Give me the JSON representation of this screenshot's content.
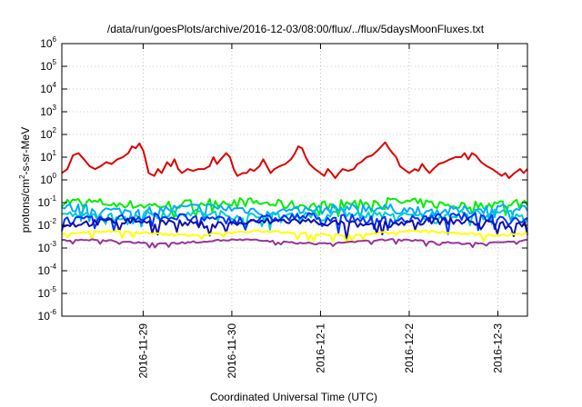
{
  "chart_data": {
    "type": "line",
    "title": "/data/run/goesPlots/archive/2016-12-03/08:00/flux/../flux/5daysMoonFluxes.txt",
    "xlabel": "Coordinated Universal Time (UTC)",
    "ylabel_parts": {
      "base": "protons/cm",
      "sup": "2",
      "rest": "-s-sr-MeV"
    },
    "yscale": "log",
    "ylim": [
      1e-06,
      1000000.0
    ],
    "ytick_exponents": [
      -6,
      -5,
      -4,
      -3,
      -2,
      -1,
      0,
      1,
      2,
      3,
      4,
      5,
      6
    ],
    "ytick_base": "10",
    "xlim": [
      "2016-11-28T02:00",
      "2016-12-03T08:00"
    ],
    "xticks": [
      {
        "at": "2016-11-29T00:00",
        "label": "2016-11-29"
      },
      {
        "at": "2016-11-30T00:00",
        "label": "2016-11-30"
      },
      {
        "at": "2016-12-01T00:00",
        "label": "2016-12-1"
      },
      {
        "at": "2016-12-02T00:00",
        "label": "2016-12-2"
      },
      {
        "at": "2016-12-03T00:00",
        "label": "2016-12-3"
      }
    ],
    "grid": true,
    "series": [
      {
        "color": "#dd0000",
        "points": [
          [
            "2016-11-28T02:00",
            2.0
          ],
          [
            "2016-11-28T03:30",
            3.0
          ],
          [
            "2016-11-28T05:00",
            12
          ],
          [
            "2016-11-28T06:30",
            15
          ],
          [
            "2016-11-28T08:00",
            8
          ],
          [
            "2016-11-28T09:30",
            4
          ],
          [
            "2016-11-28T11:00",
            3
          ],
          [
            "2016-11-28T12:30",
            4
          ],
          [
            "2016-11-28T14:00",
            6
          ],
          [
            "2016-11-28T15:30",
            5
          ],
          [
            "2016-11-28T17:00",
            8
          ],
          [
            "2016-11-28T18:30",
            10
          ],
          [
            "2016-11-28T20:00",
            15
          ],
          [
            "2016-11-28T21:00",
            30
          ],
          [
            "2016-11-28T22:00",
            25
          ],
          [
            "2016-11-28T23:00",
            40
          ],
          [
            "2016-11-29T00:00",
            20
          ],
          [
            "2016-11-29T00:30",
            10
          ],
          [
            "2016-11-29T01:30",
            2
          ],
          [
            "2016-11-29T03:00",
            1.5
          ],
          [
            "2016-11-29T04:00",
            3
          ],
          [
            "2016-11-29T05:00",
            2
          ],
          [
            "2016-11-29T06:30",
            6
          ],
          [
            "2016-11-29T07:30",
            4
          ],
          [
            "2016-11-29T08:30",
            8
          ],
          [
            "2016-11-29T09:30",
            3
          ],
          [
            "2016-11-29T10:30",
            2
          ],
          [
            "2016-11-29T12:00",
            3
          ],
          [
            "2016-11-29T13:30",
            2.5
          ],
          [
            "2016-11-29T15:00",
            3
          ],
          [
            "2016-11-29T16:30",
            3
          ],
          [
            "2016-11-29T18:00",
            4
          ],
          [
            "2016-11-29T19:00",
            10
          ],
          [
            "2016-11-29T20:00",
            5
          ],
          [
            "2016-11-29T21:00",
            8
          ],
          [
            "2016-11-29T22:30",
            15
          ],
          [
            "2016-11-29T23:30",
            10
          ],
          [
            "2016-11-30T00:30",
            3
          ],
          [
            "2016-11-30T01:30",
            1.5
          ],
          [
            "2016-11-30T03:00",
            2
          ],
          [
            "2016-11-30T04:00",
            2
          ],
          [
            "2016-11-30T05:00",
            3
          ],
          [
            "2016-11-30T06:00",
            2.5
          ],
          [
            "2016-11-30T07:30",
            4
          ],
          [
            "2016-11-30T08:30",
            8
          ],
          [
            "2016-11-30T09:30",
            4
          ],
          [
            "2016-11-30T10:30",
            2
          ],
          [
            "2016-11-30T11:30",
            3
          ],
          [
            "2016-11-30T13:00",
            4
          ],
          [
            "2016-11-30T14:30",
            5
          ],
          [
            "2016-11-30T16:00",
            8
          ],
          [
            "2016-11-30T17:00",
            14
          ],
          [
            "2016-11-30T18:00",
            30
          ],
          [
            "2016-11-30T19:00",
            25
          ],
          [
            "2016-11-30T20:00",
            10
          ],
          [
            "2016-11-30T21:00",
            5
          ],
          [
            "2016-11-30T22:30",
            3
          ],
          [
            "2016-12-01T00:00",
            2
          ],
          [
            "2016-12-01T01:00",
            1.5
          ],
          [
            "2016-12-01T02:00",
            3
          ],
          [
            "2016-12-01T03:00",
            2
          ],
          [
            "2016-12-01T04:00",
            1.2
          ],
          [
            "2016-12-01T05:00",
            2
          ],
          [
            "2016-12-01T06:00",
            3
          ],
          [
            "2016-12-01T07:30",
            2.5
          ],
          [
            "2016-12-01T09:00",
            3
          ],
          [
            "2016-12-01T10:00",
            5
          ],
          [
            "2016-12-01T11:00",
            6
          ],
          [
            "2016-12-01T12:30",
            10
          ],
          [
            "2016-12-01T14:00",
            12
          ],
          [
            "2016-12-01T15:30",
            20
          ],
          [
            "2016-12-01T16:30",
            30
          ],
          [
            "2016-12-01T17:30",
            45
          ],
          [
            "2016-12-01T18:30",
            25
          ],
          [
            "2016-12-01T19:30",
            15
          ],
          [
            "2016-12-01T20:30",
            10
          ],
          [
            "2016-12-01T21:30",
            4
          ],
          [
            "2016-12-01T22:30",
            3
          ],
          [
            "2016-12-02T00:00",
            2
          ],
          [
            "2016-12-02T01:30",
            3
          ],
          [
            "2016-12-02T02:30",
            2.5
          ],
          [
            "2016-12-02T03:30",
            5
          ],
          [
            "2016-12-02T04:30",
            3
          ],
          [
            "2016-12-02T05:30",
            2
          ],
          [
            "2016-12-02T06:30",
            3
          ],
          [
            "2016-12-02T08:00",
            5
          ],
          [
            "2016-12-02T09:30",
            6
          ],
          [
            "2016-12-02T11:00",
            8
          ],
          [
            "2016-12-02T12:30",
            10
          ],
          [
            "2016-12-02T14:00",
            10
          ],
          [
            "2016-12-02T15:00",
            15
          ],
          [
            "2016-12-02T16:00",
            8
          ],
          [
            "2016-12-02T17:00",
            15
          ],
          [
            "2016-12-02T18:00",
            12
          ],
          [
            "2016-12-02T19:30",
            6
          ],
          [
            "2016-12-02T21:00",
            4
          ],
          [
            "2016-12-02T22:30",
            3
          ],
          [
            "2016-12-03T00:00",
            2
          ],
          [
            "2016-12-03T01:00",
            1.5
          ],
          [
            "2016-12-03T02:00",
            2
          ],
          [
            "2016-12-03T03:00",
            1.2
          ],
          [
            "2016-12-03T04:30",
            2
          ],
          [
            "2016-12-03T06:00",
            3
          ],
          [
            "2016-12-03T07:00",
            2
          ],
          [
            "2016-12-03T08:00",
            3
          ]
        ]
      },
      {
        "color": "#00ee00",
        "base": 0.09,
        "amp": 0.4,
        "dip": 0.45
      },
      {
        "color": "#00aaff",
        "base": 0.05,
        "amp": 0.4,
        "dip": 0.55
      },
      {
        "color": "#00cccc",
        "base": 0.03,
        "amp": 0.35,
        "dip": 0.5
      },
      {
        "color": "#0033ff",
        "base": 0.02,
        "amp": 0.35,
        "dip": 0.6
      },
      {
        "color": "#1111aa",
        "base": 0.013,
        "amp": 0.3,
        "dip": 0.55
      },
      {
        "color": "#ffff00",
        "base": 0.0045,
        "amp": 0.1,
        "dip": 0.35
      },
      {
        "color": "#993399",
        "base": 0.0019,
        "amp": 0.08,
        "dip": 0.2
      }
    ]
  }
}
